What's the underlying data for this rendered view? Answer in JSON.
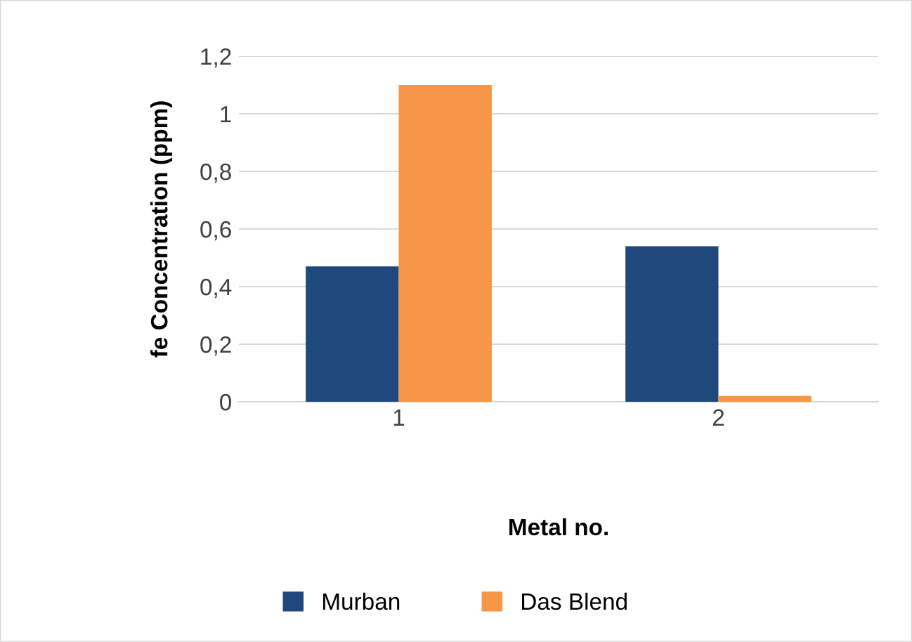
{
  "chart_data": {
    "type": "bar",
    "xlabel": "Metal no.",
    "ylabel": "fe Concentration (ppm)",
    "categories": [
      "1",
      "2"
    ],
    "series": [
      {
        "name": "Murban",
        "color": "#1f497d",
        "values": [
          0.47,
          0.54
        ]
      },
      {
        "name": "Das Blend",
        "color": "#f79646",
        "values": [
          1.1,
          0.02
        ]
      }
    ],
    "ylim": [
      0,
      1.2
    ],
    "yticks": [
      0,
      {
        "value": 0.2,
        "label": "0,2"
      },
      {
        "value": 0.4,
        "label": "0,4"
      },
      {
        "value": 0.6,
        "label": "0,6"
      },
      {
        "value": 0.8,
        "label": "0,8"
      },
      1,
      {
        "value": 1.2,
        "label": "1,2"
      }
    ],
    "grid": "y",
    "legend": "bottom"
  }
}
